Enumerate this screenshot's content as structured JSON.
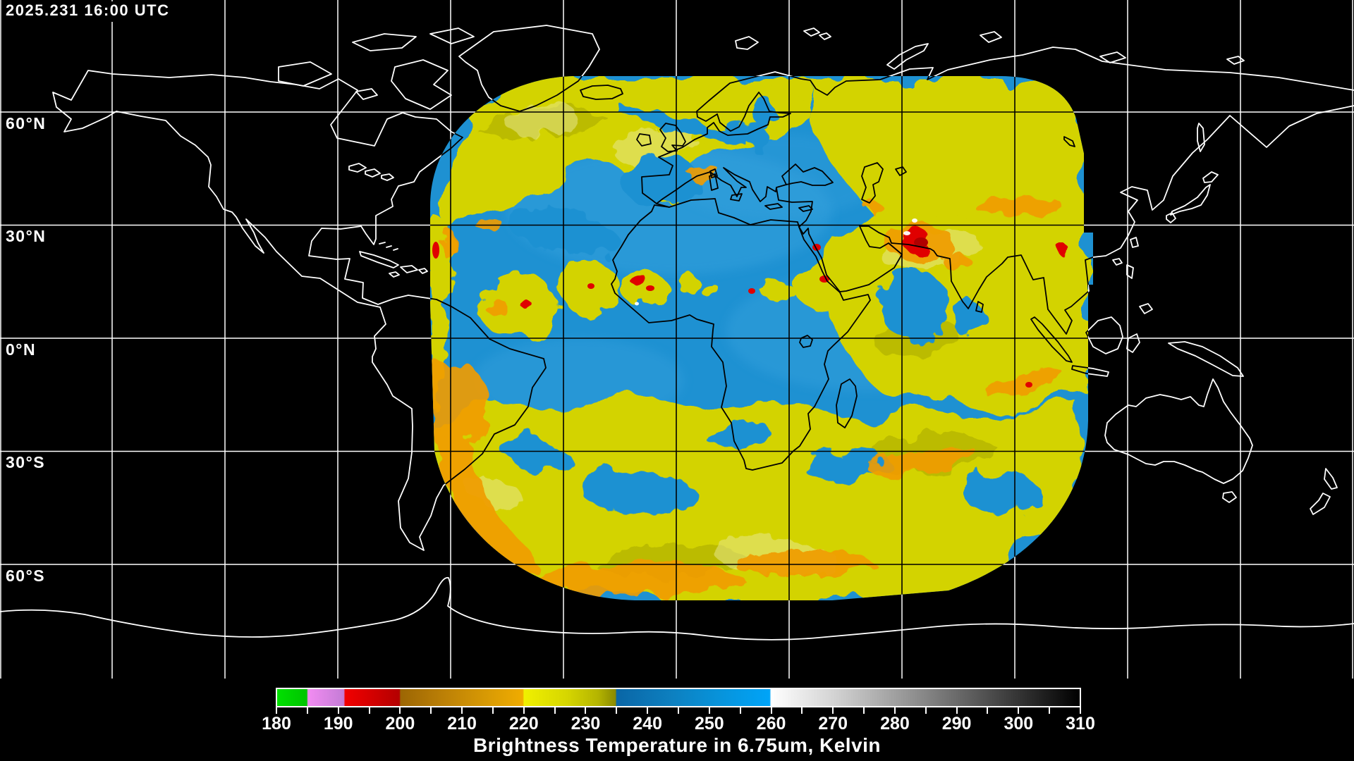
{
  "product": {
    "timestamp": "2025.231 16:00 UTC",
    "caption": "Brightness Temperature in 6.75um, Kelvin"
  },
  "map": {
    "projection": "equirectangular",
    "grid_interval_degrees": 30,
    "latitude_labels": [
      {
        "text": "60°N"
      },
      {
        "text": "30°N"
      },
      {
        "text": "0°N"
      },
      {
        "text": "30°S"
      },
      {
        "text": "60°S"
      }
    ],
    "colors": {
      "background": "#000000",
      "coastline_outside_swath": "#ffffff",
      "coastline_inside_swath": "#000000",
      "gridline_outside_swath": "#ffffff",
      "gridline_inside_swath": "#000000",
      "swath_dry_blue": "#1e91d2",
      "swath_moist_yellow": "#d3d300",
      "swath_cold_orange": "#f09c00",
      "swath_convection_red": "#e00000"
    }
  },
  "colorbar": {
    "unit": "Kelvin",
    "min": 180,
    "max": 310,
    "tick_interval": 5,
    "label_interval": 10,
    "labels": [
      "180",
      "190",
      "200",
      "210",
      "220",
      "230",
      "240",
      "250",
      "260",
      "270",
      "280",
      "290",
      "300",
      "310"
    ],
    "gradient_stops": [
      {
        "v": 180,
        "c": "#00e000"
      },
      {
        "v": 184.8,
        "c": "#00c400"
      },
      {
        "v": 185,
        "c": "#f28cf2"
      },
      {
        "v": 190.8,
        "c": "#c47cd6"
      },
      {
        "v": 191,
        "c": "#f20000"
      },
      {
        "v": 199.8,
        "c": "#b40000"
      },
      {
        "v": 200,
        "c": "#9c6604"
      },
      {
        "v": 207,
        "c": "#bc8006"
      },
      {
        "v": 214,
        "c": "#d89a04"
      },
      {
        "v": 219.8,
        "c": "#f0ac00"
      },
      {
        "v": 220,
        "c": "#f0f000"
      },
      {
        "v": 227,
        "c": "#d6d600"
      },
      {
        "v": 232,
        "c": "#b4b400"
      },
      {
        "v": 234.8,
        "c": "#8a8a00"
      },
      {
        "v": 235,
        "c": "#0a66a6"
      },
      {
        "v": 244,
        "c": "#0d80c0"
      },
      {
        "v": 252,
        "c": "#0794dc"
      },
      {
        "v": 259.8,
        "c": "#00a4f8"
      },
      {
        "v": 260,
        "c": "#ffffff"
      },
      {
        "v": 270,
        "c": "#d4d4d4"
      },
      {
        "v": 282,
        "c": "#969696"
      },
      {
        "v": 296,
        "c": "#4a4a4a"
      },
      {
        "v": 310,
        "c": "#000000"
      }
    ]
  }
}
